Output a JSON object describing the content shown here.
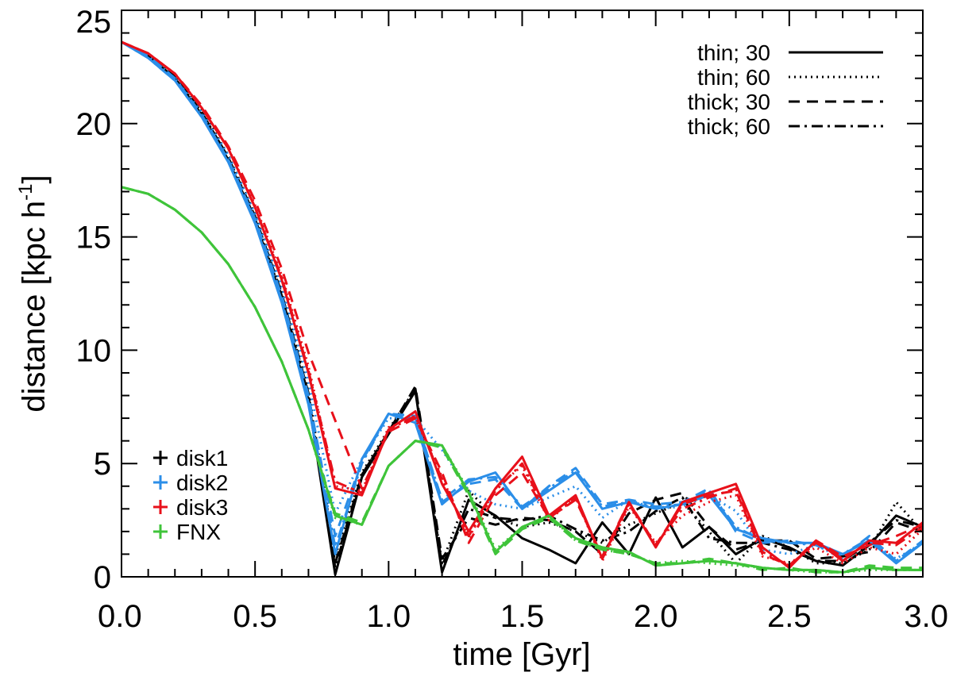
{
  "chart_data": {
    "type": "line",
    "title": "",
    "xlabel": "time [Gyr]",
    "ylabel": "distance [kpc h",
    "ylabel_sup": "-1",
    "ylabel_end": "]",
    "xlim": [
      0,
      3
    ],
    "ylim": [
      0,
      25
    ],
    "xticks": [
      0,
      0.5,
      1,
      1.5,
      2,
      2.5,
      3
    ],
    "xtick_labels": [
      "0.0",
      "0.5",
      "1.0",
      "1.5",
      "2.0",
      "2.5",
      "3.0"
    ],
    "yticks": [
      0,
      5,
      10,
      15,
      20,
      25
    ],
    "ytick_labels": [
      "0",
      "5",
      "10",
      "15",
      "20",
      "25"
    ],
    "grid": false,
    "colors": {
      "disk1": "#000000",
      "disk2": "#2b8ee8",
      "disk3": "#e8101a",
      "FNX": "#3fc43a"
    },
    "legend_style": {
      "position": "top-right",
      "entries": [
        {
          "label": "thin; 30",
          "dash": "solid"
        },
        {
          "label": "thin; 60",
          "dash": "dotted"
        },
        {
          "label": "thick; 30",
          "dash": "dashed"
        },
        {
          "label": "thick; 60",
          "dash": "dashdot"
        }
      ]
    },
    "legend_color": {
      "position": "bottom-left",
      "entries": [
        {
          "label": "disk1",
          "color": "#000000"
        },
        {
          "label": "disk2",
          "color": "#2b8ee8"
        },
        {
          "label": "disk3",
          "color": "#e8101a"
        },
        {
          "label": "FNX",
          "color": "#3fc43a"
        }
      ]
    },
    "x": [
      0.0,
      0.1,
      0.2,
      0.3,
      0.4,
      0.5,
      0.6,
      0.7,
      0.8,
      0.9,
      1.0,
      1.1,
      1.2,
      1.3,
      1.4,
      1.5,
      1.6,
      1.7,
      1.8,
      1.9,
      2.0,
      2.1,
      2.2,
      2.3,
      2.4,
      2.5,
      2.6,
      2.7,
      2.8,
      2.9,
      3.0
    ],
    "series": [
      {
        "name": "disk1",
        "style": "solid",
        "values": [
          23.6,
          23.0,
          22.0,
          20.4,
          18.4,
          15.7,
          12.3,
          7.8,
          0.1,
          4.4,
          6.3,
          8.2,
          0.2,
          3.4,
          2.7,
          1.7,
          1.2,
          0.6,
          2.4,
          1.0,
          3.5,
          1.3,
          2.2,
          1.0,
          1.7,
          1.3,
          0.7,
          0.5,
          1.4,
          2.7,
          2.2
        ]
      },
      {
        "name": "disk1",
        "style": "dotted",
        "values": [
          23.6,
          23.0,
          22.1,
          20.6,
          18.6,
          16.0,
          12.6,
          8.2,
          0.9,
          4.6,
          6.5,
          8.3,
          0.6,
          3.8,
          2.6,
          2.2,
          2.4,
          2.0,
          1.5,
          2.3,
          2.8,
          3.3,
          2.0,
          0.6,
          1.8,
          1.3,
          0.6,
          0.6,
          1.2,
          3.3,
          2.0
        ]
      },
      {
        "name": "disk1",
        "style": "dashed",
        "values": [
          23.6,
          23.0,
          22.1,
          20.5,
          18.5,
          15.9,
          12.5,
          8.1,
          0.6,
          4.5,
          6.4,
          8.4,
          0.8,
          2.6,
          2.3,
          2.6,
          2.5,
          2.0,
          1.0,
          2.8,
          3.4,
          3.7,
          2.2,
          1.2,
          1.6,
          1.6,
          0.8,
          0.9,
          1.1,
          2.4,
          2.0
        ]
      },
      {
        "name": "disk1",
        "style": "dashdot",
        "values": [
          23.6,
          23.0,
          22.0,
          20.5,
          18.5,
          15.8,
          12.4,
          8.0,
          0.4,
          4.5,
          6.4,
          8.3,
          0.5,
          3.0,
          2.6,
          2.5,
          2.7,
          2.1,
          1.6,
          2.0,
          2.9,
          3.5,
          1.7,
          1.5,
          1.5,
          1.2,
          0.7,
          0.7,
          1.5,
          2.5,
          2.2
        ]
      },
      {
        "name": "disk2",
        "style": "solid",
        "values": [
          23.6,
          22.9,
          21.9,
          20.3,
          18.3,
          15.6,
          12.1,
          7.6,
          1.0,
          5.2,
          7.2,
          6.8,
          3.2,
          4.2,
          4.6,
          3.0,
          3.8,
          4.6,
          3.0,
          3.3,
          3.0,
          3.2,
          3.6,
          2.1,
          1.7,
          1.5,
          1.5,
          1.0,
          1.6,
          0.6,
          1.5
        ]
      },
      {
        "name": "disk2",
        "style": "dotted",
        "values": [
          23.6,
          23.0,
          22.0,
          20.5,
          18.6,
          16.0,
          12.8,
          8.6,
          2.8,
          5.2,
          7.0,
          7.0,
          5.6,
          3.8,
          3.2,
          3.0,
          3.5,
          4.0,
          2.6,
          3.4,
          3.0,
          3.1,
          3.6,
          2.9,
          1.2,
          1.0,
          1.4,
          0.8,
          1.5,
          0.8,
          1.5
        ]
      },
      {
        "name": "disk2",
        "style": "dashed",
        "values": [
          23.6,
          23.0,
          22.0,
          20.4,
          18.4,
          15.8,
          12.4,
          8.0,
          1.8,
          5.1,
          7.2,
          7.1,
          3.3,
          4.1,
          4.3,
          3.0,
          4.0,
          4.8,
          3.2,
          3.4,
          3.2,
          3.3,
          3.9,
          2.0,
          1.5,
          1.6,
          1.4,
          0.9,
          1.8,
          0.7,
          1.6
        ]
      },
      {
        "name": "disk2",
        "style": "dashdot",
        "values": [
          23.6,
          22.9,
          21.9,
          20.3,
          18.4,
          15.7,
          12.2,
          7.7,
          1.3,
          5.0,
          7.2,
          7.0,
          3.4,
          4.3,
          4.4,
          3.1,
          3.9,
          4.7,
          3.1,
          3.3,
          3.1,
          3.2,
          3.8,
          2.2,
          1.6,
          1.5,
          1.4,
          1.0,
          1.7,
          0.7,
          1.5
        ]
      },
      {
        "name": "disk3",
        "style": "solid",
        "values": [
          23.6,
          23.1,
          22.2,
          20.7,
          18.9,
          16.3,
          13.1,
          9.0,
          3.9,
          3.6,
          6.5,
          7.3,
          4.1,
          2.0,
          3.9,
          5.3,
          2.7,
          3.6,
          0.8,
          3.3,
          1.3,
          3.3,
          3.7,
          4.1,
          1.3,
          0.4,
          1.6,
          0.7,
          1.6,
          1.5,
          2.4
        ]
      },
      {
        "name": "disk3",
        "style": "dotted",
        "values": [
          23.6,
          23.1,
          22.2,
          20.7,
          18.9,
          16.4,
          13.3,
          9.3,
          4.0,
          3.8,
          6.6,
          7.0,
          4.4,
          1.7,
          3.9,
          4.9,
          2.5,
          3.5,
          0.7,
          3.1,
          1.5,
          2.7,
          3.3,
          3.6,
          0.9,
          0.6,
          1.3,
          0.6,
          1.3,
          1.0,
          2.1
        ]
      },
      {
        "name": "disk3",
        "style": "dashed",
        "values": [
          23.6,
          23.1,
          22.2,
          20.8,
          19.0,
          16.6,
          13.6,
          9.9,
          6.9,
          3.9,
          6.4,
          7.0,
          4.6,
          1.5,
          3.6,
          4.6,
          2.6,
          3.4,
          0.9,
          3.3,
          1.4,
          3.2,
          3.6,
          3.8,
          1.0,
          0.5,
          1.6,
          0.9,
          1.4,
          1.8,
          2.3
        ]
      },
      {
        "name": "disk3",
        "style": "dashdot",
        "values": [
          23.6,
          23.1,
          22.2,
          20.7,
          18.9,
          16.3,
          13.2,
          9.1,
          4.2,
          3.7,
          6.5,
          7.1,
          4.3,
          1.8,
          3.8,
          5.0,
          2.6,
          3.5,
          0.8,
          3.2,
          1.4,
          3.0,
          3.5,
          3.9,
          1.1,
          0.5,
          1.5,
          0.8,
          1.5,
          1.4,
          2.2
        ]
      },
      {
        "name": "FNX",
        "style": "solid",
        "values": [
          17.2,
          16.9,
          16.2,
          15.2,
          13.8,
          11.9,
          9.5,
          6.5,
          2.7,
          2.3,
          4.9,
          6.0,
          5.8,
          3.7,
          1.1,
          2.2,
          2.7,
          1.7,
          1.3,
          1.1,
          0.5,
          0.6,
          0.7,
          0.6,
          0.4,
          0.3,
          0.3,
          0.2,
          0.4,
          0.3,
          0.3
        ]
      },
      {
        "name": "FNX",
        "style": "dotted",
        "values": [
          17.2,
          16.9,
          16.2,
          15.2,
          13.8,
          11.9,
          9.5,
          6.5,
          2.6,
          2.3,
          4.9,
          6.0,
          5.8,
          3.8,
          1.2,
          2.2,
          2.7,
          1.6,
          1.2,
          1.0,
          0.6,
          0.7,
          0.6,
          0.5,
          0.4,
          0.3,
          0.2,
          0.2,
          0.3,
          0.3,
          0.3
        ]
      },
      {
        "name": "FNX",
        "style": "dashed",
        "values": [
          17.2,
          16.9,
          16.2,
          15.2,
          13.8,
          11.9,
          9.5,
          6.5,
          2.8,
          2.4,
          4.9,
          6.0,
          5.7,
          3.6,
          1.0,
          2.1,
          2.6,
          1.6,
          1.2,
          1.0,
          0.6,
          0.6,
          0.8,
          0.6,
          0.3,
          0.4,
          0.2,
          0.2,
          0.5,
          0.4,
          0.4
        ]
      },
      {
        "name": "FNX",
        "style": "dashdot",
        "values": [
          17.2,
          16.9,
          16.2,
          15.2,
          13.8,
          11.9,
          9.5,
          6.5,
          2.7,
          2.3,
          4.9,
          6.0,
          5.8,
          3.7,
          1.1,
          2.2,
          2.7,
          1.7,
          1.3,
          1.1,
          0.5,
          0.6,
          0.7,
          0.6,
          0.4,
          0.3,
          0.3,
          0.2,
          0.4,
          0.3,
          0.3
        ]
      }
    ]
  }
}
